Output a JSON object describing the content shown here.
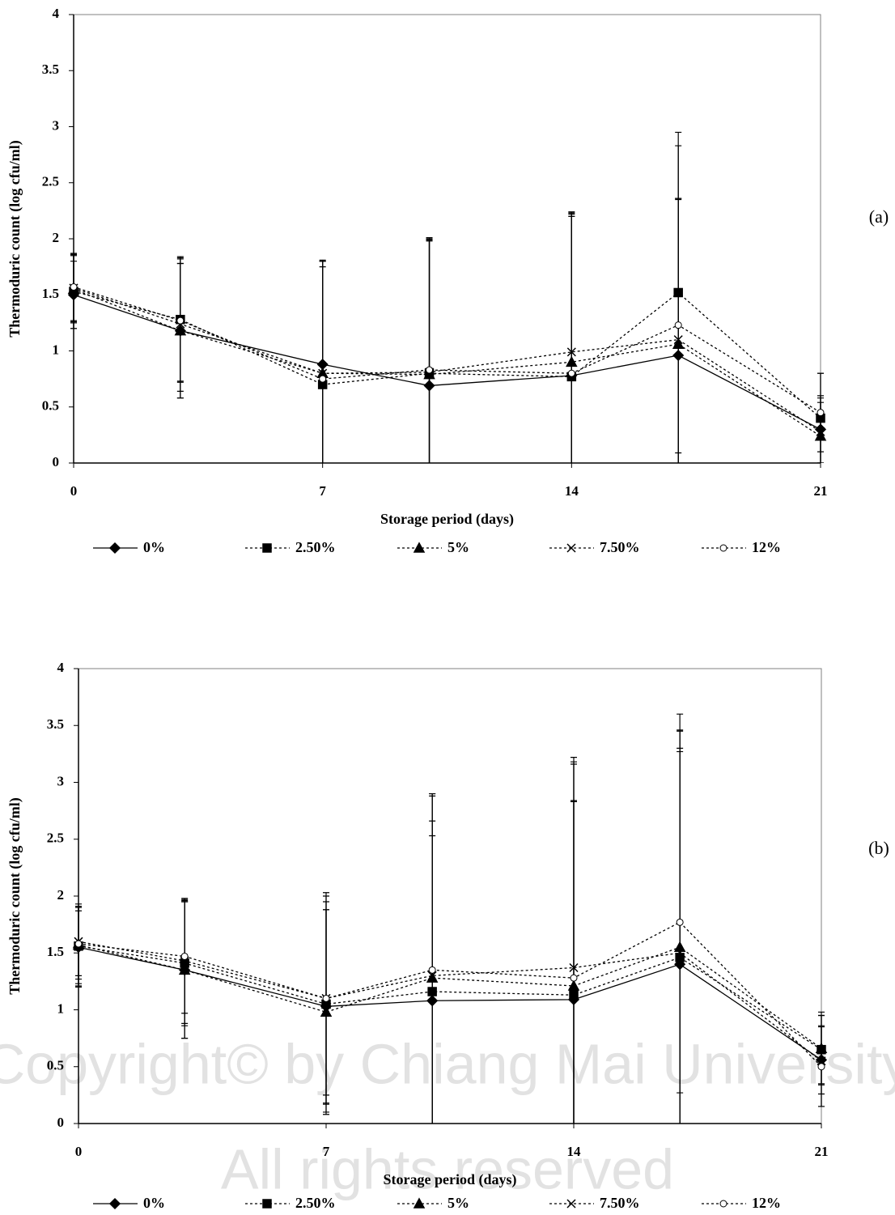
{
  "watermark": [
    "Copyright© by Chiang Mai University",
    "All rights reserved"
  ],
  "chart_data": [
    {
      "type": "line",
      "panel_label": "(a)",
      "xlabel": "Storage period (days)",
      "ylabel": "Thermoduric count (log cfu/ml)",
      "x": [
        0,
        3,
        7,
        10,
        14,
        17,
        21
      ],
      "xlim": [
        0,
        21
      ],
      "xticks": [
        0,
        7,
        14,
        21
      ],
      "ylim": [
        0,
        4
      ],
      "yticks": [
        0,
        0.5,
        1,
        1.5,
        2,
        2.5,
        3,
        3.5,
        4
      ],
      "series": [
        {
          "name": "0%",
          "color": "#000000",
          "dash": "solid",
          "marker": "diamond",
          "values": [
            1.5,
            1.18,
            0.88,
            0.69,
            0.78,
            0.96,
            0.3
          ],
          "errors": [
            0.3,
            0.6,
            0.93,
            1.3,
            1.45,
            1.4,
            0.3
          ]
        },
        {
          "name": "2.50%",
          "color": "#000000",
          "dash": "dotted",
          "marker": "square",
          "values": [
            1.53,
            1.28,
            0.7,
            0.8,
            0.77,
            1.52,
            0.4
          ],
          "errors": [
            0.33,
            0.55,
            1.1,
            1.2,
            1.45,
            1.43,
            0.4
          ]
        },
        {
          "name": "5%",
          "color": "#000000",
          "dash": "dotted",
          "marker": "triangle",
          "values": [
            1.55,
            1.18,
            0.8,
            0.79,
            0.9,
            1.06,
            0.24
          ],
          "errors": [
            0.3,
            0.6,
            0.95,
            1.2,
            1.3,
            1.3,
            0.3
          ]
        },
        {
          "name": "7.50%",
          "color": "#000000",
          "dash": "dotted",
          "marker": "cross",
          "values": [
            1.56,
            1.24,
            0.8,
            0.81,
            0.99,
            1.1,
            0.28
          ],
          "errors": [
            0.3,
            0.6,
            1.0,
            1.2,
            1.25,
            1.25,
            0.3
          ]
        },
        {
          "name": "12%",
          "color": "#000000",
          "dash": "dotted",
          "marker": "circle",
          "values": [
            1.57,
            1.27,
            0.75,
            0.83,
            0.8,
            1.23,
            0.45
          ],
          "errors": [
            0.3,
            0.55,
            1.05,
            1.15,
            1.4,
            1.6,
            0.35
          ]
        }
      ]
    },
    {
      "type": "line",
      "panel_label": "(b)",
      "xlabel": "Storage period (days)",
      "ylabel": "Thermoduric count (log cfu/ml)",
      "x": [
        0,
        3,
        7,
        10,
        14,
        17,
        21
      ],
      "xlim": [
        0,
        21
      ],
      "xticks": [
        0,
        7,
        14,
        21
      ],
      "ylim": [
        0,
        4
      ],
      "yticks": [
        0,
        0.5,
        1,
        1.5,
        2,
        2.5,
        3,
        3.5,
        4
      ],
      "series": [
        {
          "name": "0%",
          "color": "#000000",
          "dash": "solid",
          "marker": "diamond",
          "values": [
            1.55,
            1.35,
            1.03,
            1.08,
            1.09,
            1.4,
            0.56
          ],
          "errors": [
            0.35,
            0.6,
            0.85,
            1.45,
            1.75,
            1.9,
            0.3
          ]
        },
        {
          "name": "2.50%",
          "color": "#000000",
          "dash": "dotted",
          "marker": "square",
          "values": [
            1.56,
            1.41,
            1.05,
            1.16,
            1.13,
            1.46,
            0.65
          ],
          "errors": [
            0.35,
            0.55,
            0.95,
            1.5,
            1.7,
            2.0,
            0.3
          ]
        },
        {
          "name": "5%",
          "color": "#000000",
          "dash": "dotted",
          "marker": "triangle",
          "values": [
            1.57,
            1.35,
            0.98,
            1.28,
            1.21,
            1.55,
            0.66
          ],
          "errors": [
            0.3,
            0.6,
            0.9,
            1.6,
            1.95,
            1.9,
            0.32
          ]
        },
        {
          "name": "7.50%",
          "color": "#000000",
          "dash": "dotted",
          "marker": "cross",
          "values": [
            1.6,
            1.43,
            1.1,
            1.3,
            1.37,
            1.5,
            0.55
          ],
          "errors": [
            0.3,
            0.55,
            0.93,
            1.6,
            1.85,
            2.1,
            0.4
          ]
        },
        {
          "name": "12%",
          "color": "#000000",
          "dash": "dotted",
          "marker": "circle",
          "values": [
            1.58,
            1.47,
            1.1,
            1.35,
            1.28,
            1.77,
            0.5
          ],
          "errors": [
            0.35,
            0.5,
            0.85,
            1.55,
            1.9,
            1.5,
            0.35
          ]
        }
      ]
    }
  ]
}
